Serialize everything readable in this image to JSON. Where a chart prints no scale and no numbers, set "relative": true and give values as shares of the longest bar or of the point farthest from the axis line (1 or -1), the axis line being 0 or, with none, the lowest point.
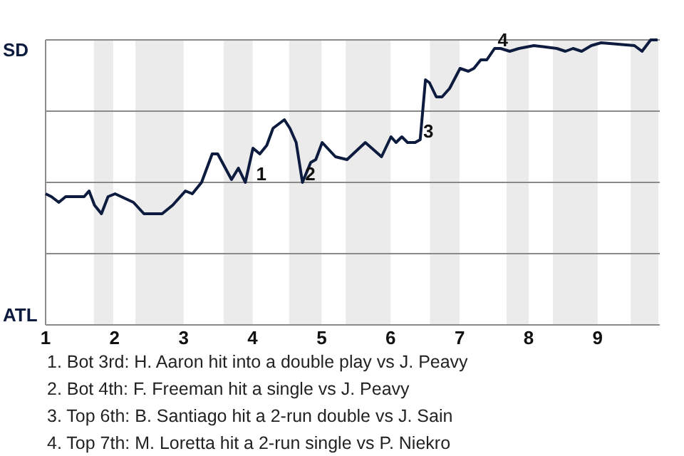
{
  "chart_data": {
    "type": "line",
    "relative": true,
    "x": [
      1,
      1.084,
      1.191,
      1.291,
      1.559,
      1.63,
      1.709,
      1.809,
      1.905,
      2.007,
      2.273,
      2.425,
      2.689,
      2.841,
      3.026,
      3.126,
      3.26,
      3.414,
      3.494,
      3.694,
      3.794,
      3.894,
      4.005,
      4.104,
      4.205,
      4.296,
      4.46,
      4.54,
      4.631,
      4.722,
      4.842,
      4.915,
      5.008,
      5.2,
      5.368,
      5.633,
      5.868,
      6.005,
      6.078,
      6.162,
      6.245,
      6.355,
      6.428,
      6.505,
      6.562,
      6.662,
      6.745,
      6.855,
      7.006,
      7.126,
      7.206,
      7.306,
      7.394,
      7.506,
      7.594,
      7.726,
      7.86,
      8.075,
      8.408,
      8.533,
      8.643,
      8.768,
      8.908,
      9.05,
      9.533,
      9.643,
      9.768,
      9.868
    ],
    "series": [
      {
        "color": "#0d1b3e",
        "values": [
          0.46,
          0.45,
          0.43,
          0.45,
          0.45,
          0.47,
          0.42,
          0.39,
          0.45,
          0.46,
          0.43,
          0.39,
          0.39,
          0.42,
          0.47,
          0.46,
          0.5,
          0.6,
          0.6,
          0.51,
          0.55,
          0.5,
          0.62,
          0.6,
          0.63,
          0.69,
          0.72,
          0.69,
          0.64,
          0.5,
          0.57,
          0.58,
          0.64,
          0.59,
          0.58,
          0.64,
          0.59,
          0.66,
          0.64,
          0.66,
          0.64,
          0.64,
          0.65,
          0.86,
          0.85,
          0.8,
          0.8,
          0.83,
          0.9,
          0.89,
          0.9,
          0.93,
          0.93,
          0.97,
          0.97,
          0.96,
          0.97,
          0.98,
          0.97,
          0.96,
          0.97,
          0.96,
          0.98,
          0.99,
          0.98,
          0.96,
          1.0,
          1.0
        ]
      }
    ],
    "xlim": [
      1,
      9.9
    ],
    "xticks": [
      1,
      2,
      3,
      4,
      5,
      6,
      7,
      8,
      9
    ],
    "marker": "none",
    "line_style": "solid",
    "ref_lines": [
      {
        "axis": "y",
        "value": 0.25,
        "color": "#8a8a8a"
      },
      {
        "axis": "y",
        "value": 0.5,
        "color": "#8a8a8a"
      },
      {
        "axis": "y",
        "value": 0.75,
        "color": "#8a8a8a"
      },
      {
        "axis": "y",
        "value": 1,
        "color": "#8a8a8a"
      }
    ],
    "bands": [
      {
        "axis": "x",
        "from": 1.7,
        "to": 1.98,
        "color": "#ebebeb"
      },
      {
        "axis": "x",
        "from": 2.3,
        "to": 3,
        "color": "#ebebeb"
      },
      {
        "axis": "x",
        "from": 3.58,
        "to": 4,
        "color": "#ebebeb"
      },
      {
        "axis": "x",
        "from": 4.53,
        "to": 5,
        "color": "#ebebeb"
      },
      {
        "axis": "x",
        "from": 5.35,
        "to": 6,
        "color": "#ebebeb"
      },
      {
        "axis": "x",
        "from": 6.57,
        "to": 7,
        "color": "#ebebeb"
      },
      {
        "axis": "x",
        "from": 7.68,
        "to": 8,
        "color": "#ebebeb"
      },
      {
        "axis": "x",
        "from": 8.35,
        "to": 9,
        "color": "#ebebeb"
      },
      {
        "axis": "x",
        "from": 9.48,
        "to": 9.88,
        "color": "#ebebeb"
      }
    ],
    "annotations": [
      "SD",
      "ATL",
      {
        "text": "1",
        "x": 4.01,
        "y": 0.5
      },
      {
        "text": "2",
        "x": 4.72,
        "y": 0.5
      },
      {
        "text": "3",
        "x": 6.43,
        "y": 0.65
      },
      {
        "text": "4",
        "x": 7.51,
        "y": 0.97
      },
      "1. Bot 3rd: H. Aaron hit into a double play vs J. Peavy",
      "2. Bot 4th: F. Freeman hit a single vs J. Peavy",
      "3. Top 6th: B. Santiago hit a 2-run double vs J. Sain",
      "4. Top 7th: M. Loretta hit a 2-run single vs P. Niekro"
    ]
  }
}
